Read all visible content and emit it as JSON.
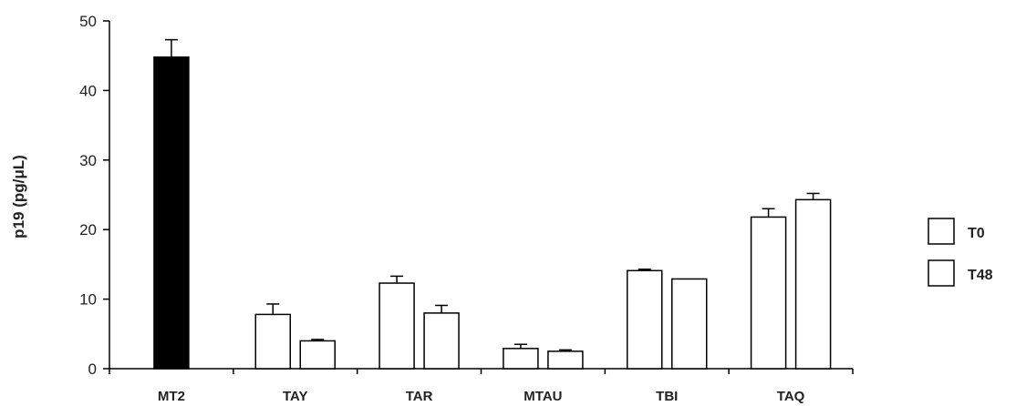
{
  "chart_data": {
    "type": "bar",
    "title": "",
    "xlabel": "",
    "ylabel": "p19 (pg/μL)",
    "ylim": [
      0,
      50
    ],
    "yticks": [
      0,
      10,
      20,
      30,
      40,
      50
    ],
    "grid": false,
    "legend_position": "right",
    "categories": [
      "MT2",
      "TAY",
      "TAR",
      "MTAU",
      "TBI",
      "TAQ"
    ],
    "series": [
      {
        "name": "T0",
        "values": [
          null,
          7.8,
          12.3,
          2.9,
          14.1,
          21.8
        ],
        "errors": [
          null,
          1.5,
          1.0,
          0.6,
          0.2,
          1.2
        ],
        "fill": "#ffffff"
      },
      {
        "name": "T48",
        "values": [
          null,
          4.0,
          8.0,
          2.5,
          12.9,
          24.3
        ],
        "errors": [
          null,
          0.2,
          1.1,
          0.2,
          0.0,
          0.9
        ],
        "fill": "#ffffff"
      }
    ],
    "reference": {
      "category": "MT2",
      "value": 44.8,
      "error": 2.5,
      "fill": "#000000"
    }
  }
}
